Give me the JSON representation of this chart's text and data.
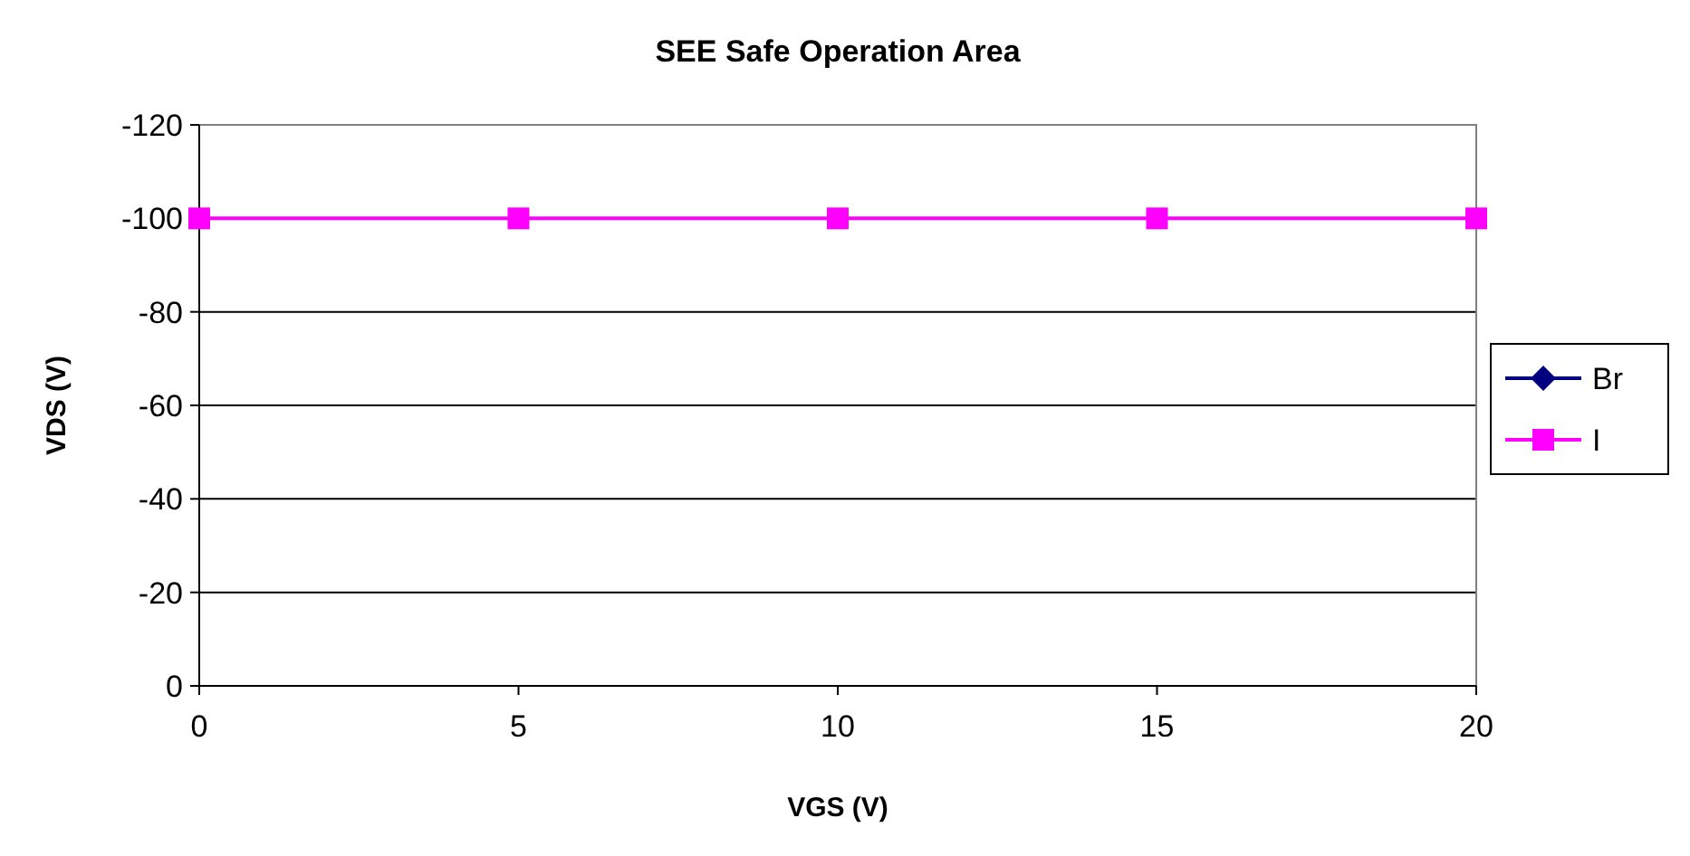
{
  "chart_data": {
    "type": "line",
    "title": "SEE Safe Operation Area",
    "xlabel": "VGS (V)",
    "ylabel": "VDS (V)",
    "x": [
      0,
      5,
      10,
      15,
      20
    ],
    "series": [
      {
        "name": "Br",
        "color": "#000080",
        "values": [
          null,
          null,
          null,
          null,
          null
        ],
        "marker": "diamond"
      },
      {
        "name": "I",
        "color": "#ff00ff",
        "values": [
          -100,
          -100,
          -100,
          -100,
          -100
        ],
        "marker": "square"
      }
    ],
    "xlim": [
      0,
      20
    ],
    "xticks": [
      0,
      5,
      10,
      15,
      20
    ],
    "ylim": [
      0,
      -120
    ],
    "yticks": [
      0,
      -20,
      -40,
      -60,
      -80,
      -100,
      -120
    ],
    "grid": "y",
    "legend": "right",
    "line_style": "solid"
  }
}
